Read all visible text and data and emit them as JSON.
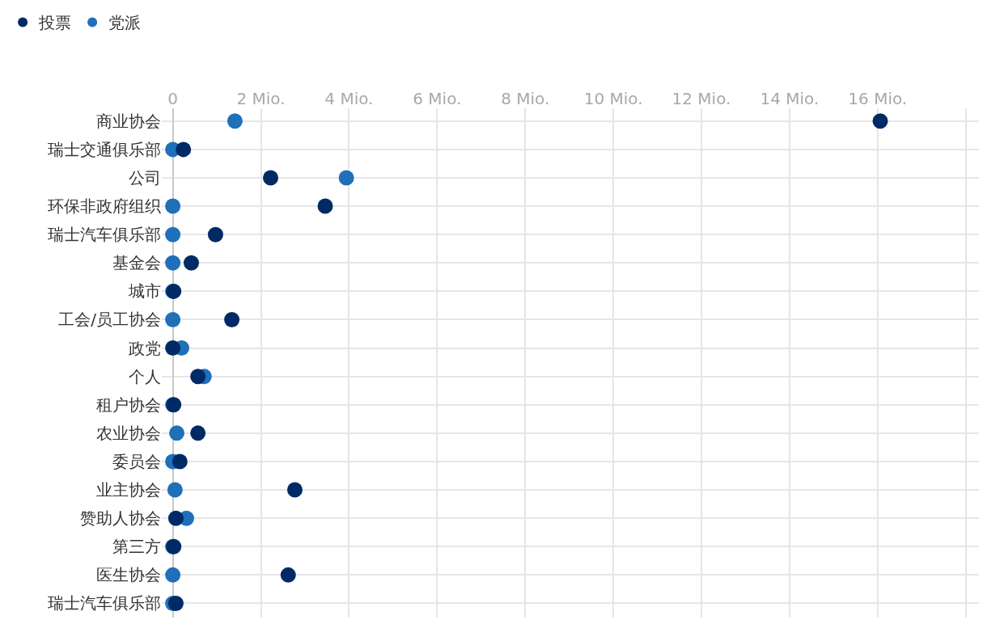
{
  "chart_data": {
    "type": "scatter",
    "orientation": "horizontal",
    "categories": [
      "商业协会",
      "瑞士交通俱乐部",
      "公司",
      "环保非政府组织",
      "瑞士汽车俱乐部",
      "基金会",
      "城市",
      "工会/员工协会",
      "政党",
      "个人",
      "租户协会",
      "农业协会",
      "委员会",
      "业主协会",
      "赞助人协会",
      "第三方",
      "医生协会",
      "瑞士汽车俱乐部"
    ],
    "series": [
      {
        "name": "投票",
        "color": "#002a66",
        "values": [
          16.06,
          0.24,
          2.22,
          3.46,
          0.97,
          0.42,
          0.02,
          1.34,
          0,
          0.57,
          0.02,
          0.57,
          0.16,
          2.77,
          0.07,
          0.02,
          2.62,
          0.07
        ]
      },
      {
        "name": "党派",
        "color": "#1f70b9",
        "values": [
          1.41,
          0,
          3.94,
          0,
          0,
          0,
          0,
          0,
          0.2,
          0.71,
          0,
          0.09,
          0,
          0.05,
          0.31,
          0,
          0,
          0
        ]
      }
    ],
    "xlim": [
      -0.25,
      18.3
    ],
    "xticks": [
      {
        "value": 0,
        "label": "0"
      },
      {
        "value": 2,
        "label": "2 Mio."
      },
      {
        "value": 4,
        "label": "4 Mio."
      },
      {
        "value": 6,
        "label": "6 Mio."
      },
      {
        "value": 8,
        "label": "8 Mio."
      },
      {
        "value": 10,
        "label": "10 Mio."
      },
      {
        "value": 12,
        "label": "12 Mio."
      },
      {
        "value": 14,
        "label": "14 Mio."
      },
      {
        "value": 16,
        "label": "16 Mio."
      },
      {
        "value": 18,
        "label": null
      }
    ],
    "marker": "circle",
    "grid": true,
    "legend": "top left"
  }
}
